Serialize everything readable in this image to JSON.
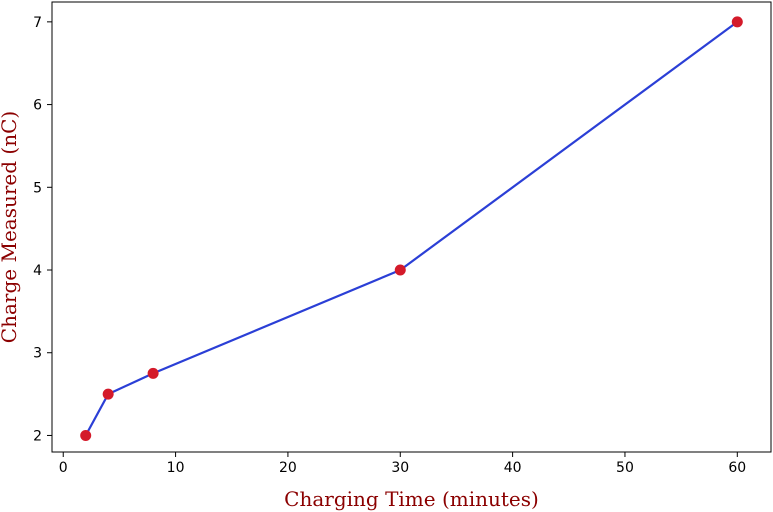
{
  "chart_data": {
    "type": "line",
    "title": "",
    "xlabel": "Charging Time (minutes)",
    "ylabel": "Charge Measured (nC)",
    "xlim": [
      -1,
      63
    ],
    "ylim": [
      1.8,
      7.24
    ],
    "xticks": [
      0,
      10,
      20,
      30,
      40,
      50,
      60
    ],
    "yticks": [
      2,
      3,
      4,
      5,
      6,
      7
    ],
    "grid": false,
    "legend": "none",
    "series": [
      {
        "x": [
          2,
          4,
          8,
          30,
          60
        ],
        "y": [
          2.0,
          2.5,
          2.75,
          4.0,
          7.0
        ],
        "line_color": "#2b3fd6",
        "marker_color": "#d41a2a"
      }
    ],
    "label_color": "#8b0000"
  }
}
